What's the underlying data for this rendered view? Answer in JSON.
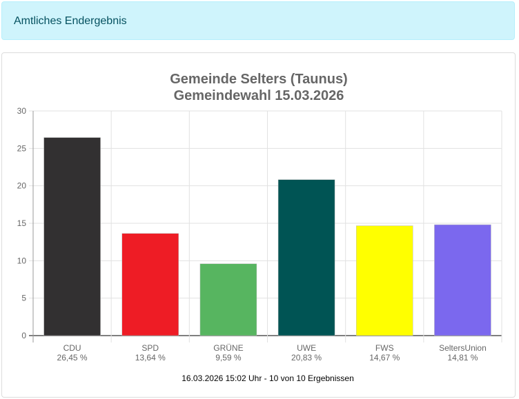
{
  "alert": {
    "text": "Amtliches Endergebnis"
  },
  "chart_data": {
    "type": "bar",
    "title": "Gemeinde Selters (Taunus)",
    "subtitle": "Gemeindewahl 15.03.2026",
    "categories": [
      "CDU",
      "SPD",
      "GRÜNE",
      "UWE",
      "FWS",
      "SeltersUnion"
    ],
    "value_labels": [
      "26,45 %",
      "13,64 %",
      "9,59 %",
      "20,83 %",
      "14,67 %",
      "14,81 %"
    ],
    "values": [
      26.45,
      13.64,
      9.59,
      20.83,
      14.67,
      14.81
    ],
    "colors": [
      "#323031",
      "#ee1c25",
      "#57b560",
      "#005454",
      "#ffff00",
      "#7b68ee"
    ],
    "ylim": [
      0,
      30
    ],
    "yticks": [
      0,
      5,
      10,
      15,
      20,
      25,
      30
    ],
    "grid": true,
    "xlabel": "",
    "ylabel": "",
    "footer": "16.03.2026 15:02 Uhr - 10 von 10 Ergebnissen"
  }
}
